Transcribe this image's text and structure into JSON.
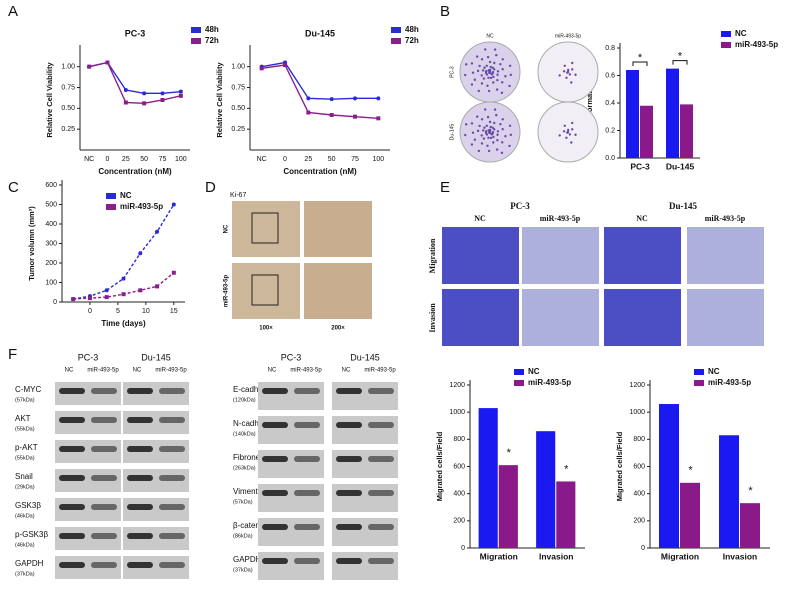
{
  "panel_labels": [
    "A",
    "B",
    "C",
    "D",
    "E",
    "F"
  ],
  "chart_data": [
    {
      "type": "line",
      "title": "PC-3",
      "x_label": "Concentration (nM)",
      "y_label": "Relative Cell Viability",
      "categories": [
        "NC",
        "0",
        "25",
        "50",
        "75",
        "100"
      ],
      "series": [
        {
          "name": "48h",
          "color": "#2b2bd6",
          "values": [
            1.0,
            1.05,
            0.72,
            0.68,
            0.68,
            0.7
          ]
        },
        {
          "name": "72h",
          "color": "#8a1e8a",
          "values": [
            1.0,
            1.05,
            0.57,
            0.56,
            0.6,
            0.65
          ]
        }
      ],
      "ylim": [
        0,
        1.2
      ],
      "yticks": [
        0.25,
        {
          "value": 0.5,
          "label": "0.50"
        },
        0.75,
        {
          "value": 1,
          "label": "1.00"
        }
      ]
    },
    {
      "type": "line",
      "title": "Du-145",
      "x_label": "Concentration (nM)",
      "y_label": "Relative Cell Viability",
      "categories": [
        "NC",
        "0",
        "25",
        "50",
        "75",
        "100"
      ],
      "series": [
        {
          "name": "48h",
          "color": "#2b2bd6",
          "values": [
            1.0,
            1.05,
            0.62,
            0.61,
            0.62,
            0.62
          ]
        },
        {
          "name": "72h",
          "color": "#8a1e8a",
          "values": [
            0.98,
            1.02,
            0.45,
            0.42,
            0.4,
            0.38
          ]
        }
      ],
      "ylim": [
        0,
        1.2
      ],
      "yticks": [
        0.25,
        {
          "value": 0.5,
          "label": "0.50"
        },
        0.75,
        {
          "value": 1,
          "label": "1.00"
        }
      ]
    },
    {
      "type": "bar",
      "y_label": "Colony Formation Rate",
      "categories": [
        "PC-3",
        "Du-145"
      ],
      "series": [
        {
          "name": "NC",
          "color": "#1a1af0",
          "values": [
            0.64,
            0.65
          ]
        },
        {
          "name": "miR-493-5p",
          "color": "#8a1a8a",
          "values": [
            0.38,
            0.39
          ]
        }
      ],
      "ylim": [
        0,
        0.8
      ],
      "yticks": [
        {
          "value": 0,
          "label": "0.0"
        },
        0.2,
        0.4,
        0.6,
        0.8
      ],
      "annotations": [
        "*",
        "*"
      ]
    },
    {
      "type": "line",
      "x_label": "Time (days)",
      "y_label": "Tumor volumn (mm³)",
      "x": [
        -3,
        0,
        3,
        6,
        9,
        12,
        15
      ],
      "series": [
        {
          "name": "NC",
          "color": "#2b2bd6",
          "values": [
            15,
            30,
            60,
            120,
            250,
            360,
            500
          ]
        },
        {
          "name": "miR-493-5p",
          "color": "#8a1e8a",
          "values": [
            15,
            20,
            25,
            40,
            60,
            80,
            150
          ]
        }
      ],
      "xlim": [
        -5,
        17
      ],
      "xticks": [
        0,
        5,
        10,
        15
      ],
      "ylim": [
        0,
        600
      ],
      "yticks": [
        0,
        100,
        200,
        300,
        400,
        500,
        600
      ]
    },
    {
      "type": "bar",
      "y_label": "Migrated cells/Field",
      "categories": [
        "Migration",
        "Invasion"
      ],
      "series": [
        {
          "name": "NC",
          "color": "#1a1af0",
          "values": [
            1030,
            860
          ]
        },
        {
          "name": "miR-493-5p",
          "color": "#8a1a8a",
          "values": [
            610,
            490
          ]
        }
      ],
      "ylim": [
        0,
        1200
      ],
      "yticks": [
        0,
        200,
        400,
        600,
        800,
        1000,
        1200
      ],
      "annotations": [
        "*",
        "*"
      ]
    },
    {
      "type": "bar",
      "y_label": "Migrated cells/Field",
      "categories": [
        "Migration",
        "Invasion"
      ],
      "series": [
        {
          "name": "NC",
          "color": "#1a1af0",
          "values": [
            1060,
            830
          ]
        },
        {
          "name": "miR-493-5p",
          "color": "#8a1a8a",
          "values": [
            480,
            330
          ]
        }
      ],
      "ylim": [
        0,
        1200
      ],
      "yticks": [
        0,
        200,
        400,
        600,
        800,
        1000,
        1200
      ],
      "annotations": [
        "*",
        "*"
      ]
    }
  ],
  "colony_images": {
    "columns": [
      "NC",
      "miR-493-5p"
    ],
    "rows": [
      "PC-3",
      "Du-145"
    ]
  },
  "ihc_images": {
    "stain": "Ki-67",
    "rows": [
      "NC",
      "miR-493-5p"
    ],
    "magnifications": [
      "100×",
      "200×"
    ]
  },
  "transwell_images": {
    "cell_lines": [
      "PC-3",
      "Du-145"
    ],
    "columns": [
      "NC",
      "miR-493-5p",
      "NC",
      "miR-493-5p"
    ],
    "rows": [
      "Migration",
      "Invasion"
    ]
  },
  "western_blots": [
    {
      "cell_lines": [
        "PC-3",
        "Du-145"
      ],
      "lanes": [
        "NC",
        "miR-493-5p",
        "NC",
        "miR-493-5p"
      ],
      "proteins": [
        {
          "name": "C-MYC",
          "size": "(57kDa)"
        },
        {
          "name": "AKT",
          "size": "(55kDa)"
        },
        {
          "name": "p-AKT",
          "size": "(55kDa)"
        },
        {
          "name": "Snail",
          "size": "(29kDa)"
        },
        {
          "name": "GSK3β",
          "size": "(46kDa)"
        },
        {
          "name": "p-GSK3β",
          "size": "(46kDa)"
        },
        {
          "name": "GAPDH",
          "size": "(37kDa)"
        }
      ]
    },
    {
      "cell_lines": [
        "PC-3",
        "Du-145"
      ],
      "lanes": [
        "NC",
        "miR-493-5p",
        "NC",
        "miR-493-5p"
      ],
      "proteins": [
        {
          "name": "E-cadherin",
          "size": "(120kDa)"
        },
        {
          "name": "N-cadherin",
          "size": "(140kDa)"
        },
        {
          "name": "Fibronectin",
          "size": "(263kDa)"
        },
        {
          "name": "Vimentin",
          "size": "(57kDa)"
        },
        {
          "name": "β-catenin",
          "size": "(86kDa)"
        },
        {
          "name": "GAPDH",
          "size": "(37kDa)"
        }
      ]
    }
  ]
}
